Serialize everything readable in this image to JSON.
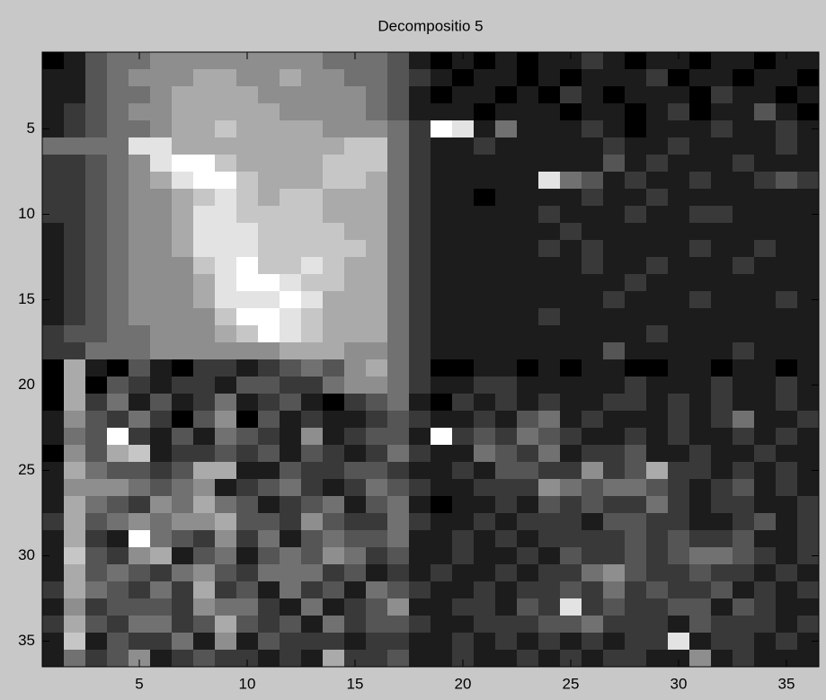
{
  "chart_data": {
    "type": "heatmap",
    "title": "Decompositio 5",
    "colormap": "gray",
    "xlim": [
      0.5,
      36.5
    ],
    "ylim": [
      0.5,
      36.5
    ],
    "y_reversed": true,
    "xticks": [
      5,
      10,
      15,
      20,
      25,
      30,
      35
    ],
    "yticks": [
      5,
      10,
      15,
      20,
      25,
      30,
      35
    ],
    "z": [
      [
        0,
        1,
        3,
        4,
        4,
        5,
        5,
        5,
        5,
        5,
        5,
        5,
        5,
        4,
        4,
        4,
        3,
        1,
        0,
        1,
        0,
        1,
        0,
        1,
        1,
        2,
        1,
        0,
        1,
        1,
        0,
        1,
        1,
        0,
        1,
        1
      ],
      [
        1,
        1,
        3,
        4,
        5,
        5,
        5,
        6,
        6,
        5,
        5,
        6,
        5,
        5,
        4,
        4,
        3,
        2,
        1,
        0,
        1,
        1,
        0,
        1,
        0,
        1,
        1,
        1,
        2,
        0,
        1,
        1,
        0,
        1,
        1,
        0
      ],
      [
        1,
        1,
        3,
        4,
        4,
        5,
        6,
        6,
        6,
        6,
        5,
        5,
        5,
        5,
        5,
        4,
        3,
        1,
        0,
        1,
        1,
        0,
        1,
        0,
        2,
        1,
        0,
        1,
        1,
        1,
        0,
        2,
        1,
        1,
        0,
        1
      ],
      [
        1,
        2,
        3,
        4,
        5,
        5,
        6,
        6,
        6,
        6,
        6,
        5,
        5,
        5,
        5,
        4,
        3,
        1,
        1,
        1,
        0,
        1,
        1,
        1,
        0,
        1,
        1,
        0,
        1,
        2,
        0,
        1,
        1,
        3,
        1,
        0
      ],
      [
        1,
        2,
        3,
        4,
        4,
        5,
        6,
        6,
        7,
        6,
        6,
        6,
        6,
        5,
        5,
        5,
        4,
        2,
        9,
        8,
        1,
        4,
        1,
        1,
        1,
        2,
        1,
        0,
        1,
        1,
        1,
        2,
        1,
        1,
        2,
        1
      ],
      [
        4,
        4,
        4,
        4,
        8,
        8,
        6,
        6,
        6,
        6,
        6,
        6,
        6,
        6,
        7,
        7,
        4,
        2,
        1,
        1,
        2,
        1,
        1,
        1,
        1,
        1,
        2,
        1,
        1,
        2,
        1,
        1,
        1,
        1,
        2,
        1
      ],
      [
        2,
        2,
        3,
        4,
        5,
        8,
        9,
        9,
        7,
        6,
        6,
        6,
        6,
        7,
        7,
        7,
        4,
        2,
        1,
        1,
        1,
        1,
        1,
        1,
        1,
        1,
        3,
        1,
        2,
        1,
        1,
        1,
        2,
        1,
        1,
        1
      ],
      [
        2,
        2,
        3,
        4,
        5,
        6,
        8,
        9,
        9,
        7,
        6,
        6,
        6,
        7,
        7,
        6,
        4,
        2,
        1,
        1,
        1,
        1,
        1,
        8,
        4,
        3,
        1,
        2,
        1,
        1,
        2,
        1,
        1,
        2,
        3,
        2
      ],
      [
        2,
        2,
        3,
        4,
        5,
        5,
        6,
        7,
        8,
        7,
        6,
        7,
        7,
        6,
        6,
        6,
        4,
        2,
        1,
        1,
        0,
        1,
        1,
        1,
        1,
        2,
        1,
        1,
        2,
        1,
        1,
        1,
        1,
        1,
        1,
        1
      ],
      [
        2,
        2,
        3,
        4,
        5,
        5,
        6,
        8,
        8,
        7,
        7,
        7,
        7,
        6,
        6,
        6,
        4,
        2,
        1,
        1,
        1,
        1,
        1,
        2,
        1,
        1,
        1,
        2,
        1,
        1,
        2,
        2,
        1,
        1,
        1,
        1
      ],
      [
        1,
        2,
        3,
        4,
        5,
        5,
        6,
        8,
        8,
        8,
        7,
        7,
        7,
        7,
        6,
        6,
        4,
        2,
        1,
        1,
        1,
        1,
        1,
        1,
        2,
        1,
        1,
        1,
        1,
        1,
        1,
        1,
        1,
        1,
        1,
        1
      ],
      [
        1,
        2,
        3,
        4,
        5,
        5,
        6,
        8,
        8,
        8,
        7,
        7,
        7,
        7,
        7,
        6,
        4,
        2,
        1,
        1,
        1,
        1,
        1,
        2,
        1,
        2,
        1,
        1,
        1,
        1,
        2,
        1,
        1,
        2,
        1,
        1
      ],
      [
        1,
        2,
        3,
        4,
        5,
        5,
        5,
        7,
        8,
        9,
        7,
        7,
        8,
        7,
        6,
        6,
        4,
        2,
        1,
        1,
        1,
        1,
        1,
        1,
        1,
        2,
        1,
        1,
        2,
        1,
        1,
        1,
        2,
        1,
        1,
        1
      ],
      [
        1,
        2,
        3,
        4,
        5,
        5,
        5,
        6,
        8,
        9,
        9,
        8,
        7,
        7,
        6,
        6,
        4,
        2,
        1,
        1,
        1,
        1,
        1,
        1,
        1,
        1,
        1,
        2,
        1,
        1,
        1,
        1,
        1,
        1,
        1,
        1
      ],
      [
        1,
        2,
        3,
        4,
        5,
        5,
        5,
        6,
        8,
        8,
        8,
        9,
        8,
        6,
        6,
        6,
        4,
        2,
        1,
        1,
        1,
        1,
        1,
        1,
        1,
        1,
        2,
        1,
        1,
        1,
        2,
        1,
        1,
        1,
        2,
        1
      ],
      [
        1,
        2,
        3,
        4,
        5,
        5,
        5,
        5,
        7,
        9,
        9,
        8,
        7,
        6,
        6,
        6,
        4,
        2,
        1,
        1,
        1,
        1,
        1,
        2,
        1,
        1,
        1,
        1,
        1,
        1,
        1,
        1,
        1,
        1,
        1,
        1
      ],
      [
        2,
        3,
        3,
        4,
        4,
        5,
        5,
        5,
        6,
        7,
        9,
        8,
        7,
        6,
        6,
        6,
        4,
        2,
        1,
        1,
        1,
        1,
        1,
        1,
        1,
        1,
        1,
        1,
        2,
        1,
        1,
        1,
        1,
        1,
        1,
        1
      ],
      [
        2,
        2,
        4,
        4,
        4,
        5,
        5,
        5,
        5,
        5,
        5,
        6,
        6,
        6,
        5,
        5,
        4,
        2,
        1,
        1,
        1,
        1,
        1,
        1,
        1,
        1,
        3,
        1,
        1,
        1,
        1,
        1,
        2,
        1,
        1,
        1
      ],
      [
        0,
        6,
        1,
        0,
        3,
        1,
        0,
        2,
        2,
        1,
        2,
        3,
        4,
        3,
        5,
        6,
        4,
        2,
        0,
        0,
        1,
        1,
        0,
        1,
        0,
        1,
        1,
        0,
        0,
        1,
        1,
        0,
        1,
        1,
        0,
        1
      ],
      [
        0,
        6,
        0,
        3,
        2,
        1,
        2,
        2,
        1,
        3,
        3,
        2,
        2,
        4,
        5,
        5,
        4,
        2,
        1,
        1,
        2,
        2,
        1,
        1,
        1,
        1,
        1,
        2,
        1,
        1,
        1,
        2,
        1,
        1,
        2,
        1
      ],
      [
        0,
        6,
        2,
        4,
        1,
        3,
        1,
        2,
        4,
        1,
        2,
        3,
        1,
        0,
        2,
        3,
        4,
        1,
        0,
        2,
        1,
        2,
        1,
        2,
        1,
        1,
        2,
        2,
        1,
        2,
        1,
        2,
        1,
        1,
        2,
        1
      ],
      [
        1,
        5,
        3,
        2,
        4,
        2,
        0,
        3,
        5,
        0,
        3,
        1,
        2,
        1,
        1,
        2,
        3,
        2,
        1,
        1,
        2,
        1,
        3,
        4,
        1,
        2,
        1,
        1,
        1,
        2,
        1,
        2,
        4,
        1,
        1,
        2
      ],
      [
        1,
        4,
        3,
        9,
        2,
        1,
        3,
        1,
        4,
        3,
        2,
        1,
        5,
        1,
        2,
        3,
        3,
        1,
        9,
        2,
        3,
        2,
        4,
        3,
        2,
        1,
        1,
        2,
        1,
        2,
        1,
        1,
        2,
        1,
        2,
        1
      ],
      [
        0,
        5,
        3,
        6,
        7,
        1,
        2,
        2,
        3,
        2,
        3,
        1,
        3,
        2,
        1,
        2,
        4,
        2,
        1,
        1,
        4,
        3,
        2,
        4,
        1,
        2,
        2,
        3,
        1,
        1,
        2,
        1,
        1,
        2,
        1,
        1
      ],
      [
        1,
        6,
        4,
        3,
        3,
        2,
        3,
        6,
        6,
        1,
        1,
        3,
        2,
        2,
        3,
        3,
        2,
        1,
        1,
        2,
        1,
        3,
        3,
        2,
        2,
        5,
        2,
        3,
        6,
        2,
        2,
        1,
        2,
        1,
        2,
        1
      ],
      [
        1,
        5,
        5,
        5,
        4,
        3,
        4,
        5,
        1,
        2,
        3,
        4,
        2,
        1,
        2,
        4,
        3,
        2,
        1,
        1,
        2,
        2,
        2,
        5,
        4,
        3,
        4,
        4,
        3,
        2,
        1,
        2,
        3,
        1,
        2,
        1
      ],
      [
        1,
        6,
        4,
        3,
        2,
        5,
        4,
        6,
        4,
        3,
        1,
        2,
        3,
        4,
        1,
        3,
        4,
        1,
        0,
        1,
        1,
        2,
        1,
        3,
        2,
        3,
        2,
        2,
        4,
        2,
        1,
        2,
        2,
        1,
        1,
        2
      ],
      [
        2,
        6,
        3,
        4,
        5,
        4,
        5,
        5,
        6,
        3,
        3,
        2,
        5,
        3,
        2,
        2,
        4,
        2,
        1,
        1,
        2,
        1,
        2,
        2,
        2,
        1,
        3,
        3,
        2,
        2,
        1,
        1,
        2,
        3,
        1,
        2
      ],
      [
        1,
        6,
        2,
        1,
        9,
        4,
        3,
        2,
        5,
        2,
        4,
        1,
        3,
        4,
        3,
        3,
        4,
        1,
        1,
        2,
        1,
        2,
        1,
        2,
        2,
        2,
        2,
        3,
        2,
        3,
        2,
        2,
        3,
        1,
        1,
        2
      ],
      [
        1,
        7,
        3,
        2,
        5,
        6,
        1,
        3,
        4,
        1,
        3,
        4,
        3,
        5,
        4,
        2,
        3,
        1,
        1,
        2,
        1,
        1,
        2,
        1,
        3,
        2,
        2,
        3,
        2,
        3,
        4,
        4,
        3,
        2,
        1,
        2
      ],
      [
        1,
        6,
        3,
        4,
        3,
        2,
        4,
        5,
        3,
        2,
        4,
        4,
        4,
        2,
        3,
        1,
        2,
        1,
        2,
        1,
        1,
        2,
        1,
        2,
        2,
        4,
        5,
        3,
        2,
        2,
        3,
        2,
        2,
        1,
        2,
        1
      ],
      [
        2,
        6,
        4,
        3,
        2,
        4,
        2,
        6,
        2,
        3,
        1,
        4,
        2,
        3,
        1,
        4,
        3,
        2,
        1,
        1,
        2,
        1,
        2,
        2,
        3,
        2,
        4,
        2,
        3,
        2,
        2,
        3,
        1,
        2,
        1,
        2
      ],
      [
        1,
        5,
        2,
        3,
        3,
        3,
        2,
        5,
        4,
        4,
        2,
        1,
        4,
        1,
        2,
        3,
        5,
        1,
        1,
        2,
        2,
        1,
        3,
        2,
        8,
        2,
        3,
        2,
        2,
        3,
        3,
        1,
        3,
        2,
        1,
        1
      ],
      [
        2,
        6,
        3,
        2,
        4,
        4,
        2,
        3,
        6,
        3,
        2,
        3,
        1,
        4,
        2,
        3,
        3,
        2,
        1,
        1,
        2,
        2,
        2,
        3,
        3,
        4,
        2,
        2,
        2,
        1,
        3,
        2,
        2,
        2,
        1,
        2
      ],
      [
        1,
        7,
        1,
        3,
        2,
        2,
        4,
        1,
        5,
        1,
        3,
        2,
        2,
        2,
        1,
        2,
        2,
        1,
        1,
        2,
        1,
        2,
        1,
        2,
        1,
        2,
        1,
        2,
        2,
        8,
        1,
        2,
        2,
        1,
        2,
        1
      ],
      [
        1,
        4,
        2,
        3,
        5,
        1,
        2,
        3,
        2,
        2,
        1,
        2,
        1,
        6,
        2,
        2,
        3,
        1,
        1,
        2,
        1,
        1,
        2,
        1,
        2,
        1,
        2,
        2,
        1,
        1,
        5,
        1,
        2,
        1,
        1,
        1
      ]
    ]
  }
}
